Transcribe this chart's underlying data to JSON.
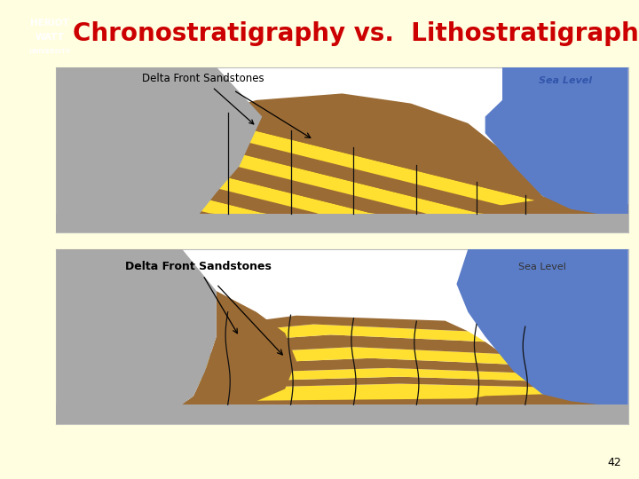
{
  "title": "Chronostratigraphy vs.  Lithostratigraphy",
  "title_color": "#CC0000",
  "title_fontsize": 20,
  "bg_color": "#FFFEE0",
  "page_number": "42",
  "box_bg": "#FFFFFF",
  "box_edge": "#BBBBBB",
  "gray_color": "#A8A8A8",
  "blue_color": "#5B7DC8",
  "brown_color": "#9B6B35",
  "yellow_color": "#FFE030",
  "sea_level_color": "#3355AA",
  "heriot_blue": "#002699",
  "chrono_vlines": [
    3.0,
    4.1,
    5.2,
    6.3,
    7.35,
    8.2
  ],
  "litho_vlines": [
    3.0,
    4.1,
    5.2,
    6.3,
    7.35,
    8.2
  ]
}
